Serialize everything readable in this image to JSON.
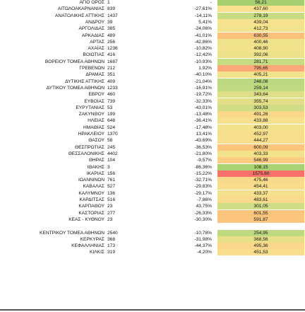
{
  "rows": [
    {
      "name": "ΑΓΙΟ ΟΡΟΣ",
      "value": "1",
      "change": "-",
      "index": "56,21",
      "color": "#a6d070"
    },
    {
      "name": "ΑΙΤΩΛΟΑΚΑΡΝΑΝΙΑΣ",
      "value": "839",
      "change": "-27,61%",
      "index": "437,60",
      "color": "#f7e08e"
    },
    {
      "name": "ΑΝΑΤΟΛΙΚΗΣ ΑΤΤΙΚΗΣ",
      "value": "1437",
      "change": "-14,11%",
      "index": "278,19",
      "color": "#c6dc82"
    },
    {
      "name": "ΑΝΔΡΟΥ",
      "value": "39",
      "change": "5,41%",
      "index": "439,04",
      "color": "#f7e08e"
    },
    {
      "name": "ΑΡΓΟΛΙΔΑΣ",
      "value": "385",
      "change": "-24,06%",
      "index": "412,73",
      "color": "#f3e28c"
    },
    {
      "name": "ΑΡΚΑΔΙΑΣ",
      "value": "489",
      "change": "-41,01%",
      "index": "630,55",
      "color": "#fbc07a"
    },
    {
      "name": "ΑΡΤΑΣ",
      "value": "256",
      "change": "-42,86%",
      "index": "400,46",
      "color": "#f0e28a"
    },
    {
      "name": "ΑΧΑΪΑΣ",
      "value": "1236",
      "change": "-10,82%",
      "index": "408,90",
      "color": "#f2e28b"
    },
    {
      "name": "ΒΟΙΩΤΙΑΣ",
      "value": "416",
      "change": "-12,42%",
      "index": "392,06",
      "color": "#ede18a"
    },
    {
      "name": "ΒΟΡΕΙΟΥ ΤΟΜΕΑ ΑΘΗΝΩΝ",
      "value": "1687",
      "change": "-10,93%",
      "index": "281,71",
      "color": "#c7dc82"
    },
    {
      "name": "ΓΡΕΒΕΝΩΝ",
      "value": "212",
      "change": "1,92%",
      "index": "795,65",
      "color": "#fca878"
    },
    {
      "name": "ΔΡΑΜΑΣ",
      "value": "351",
      "change": "-40,10%",
      "index": "405,21",
      "color": "#f1e28b"
    },
    {
      "name": "ΔΥΤΙΚΗΣ ΑΤΤΙΚΗΣ",
      "value": "409",
      "change": "-21,04%",
      "index": "248,08",
      "color": "#bad980"
    },
    {
      "name": "ΔΥΤΙΚΟΥ ΤΟΜΕΑ ΑΘΗΝΩΝ",
      "value": "1233",
      "change": "-16,91%",
      "index": "259,14",
      "color": "#bfda81"
    },
    {
      "name": "ΕΒΡΟΥ",
      "value": "460",
      "change": "-19,72%",
      "index": "343,64",
      "color": "#dfdf87"
    },
    {
      "name": "ΕΥΒΟΙΑΣ",
      "value": "739",
      "change": "-32,33%",
      "index": "355,74",
      "color": "#e3df88"
    },
    {
      "name": "ΕΥΡΥΤΑΝΙΑΣ",
      "value": "53",
      "change": "-43,01%",
      "index": "303,53",
      "color": "#d0dd84"
    },
    {
      "name": "ΖΑΚΥΝΘΟΥ",
      "value": "199",
      "change": "-13,48%",
      "index": "491,26",
      "color": "#fad88a"
    },
    {
      "name": "ΗΛΕΙΑΣ",
      "value": "648",
      "change": "-36,41%",
      "index": "433,88",
      "color": "#f6e08d"
    },
    {
      "name": "ΗΜΑΘΙΑΣ",
      "value": "524",
      "change": "-17,48%",
      "index": "403,00",
      "color": "#f1e28b"
    },
    {
      "name": "ΗΡΑΚΛΕΙΟΥ",
      "value": "1370",
      "change": "13,41%",
      "index": "452,97",
      "color": "#f8dd8c"
    },
    {
      "name": "ΘΑΣΟΥ",
      "value": "58",
      "change": "-43,69%",
      "index": "444,27",
      "color": "#f7df8d"
    },
    {
      "name": "ΘΕΣΠΡΩΤΙΑΣ",
      "value": "245",
      "change": "-36,53%",
      "index": "600,09",
      "color": "#fbc57c"
    },
    {
      "name": "ΘΕΣΣΑΛΟΝΙΚΗΣ",
      "value": "4402",
      "change": "-21,80%",
      "index": "403,33",
      "color": "#f1e28b"
    },
    {
      "name": "ΘΗΡΑΣ",
      "value": "104",
      "change": "-9,57%",
      "index": "546,99",
      "color": "#fbcd82"
    },
    {
      "name": "ΙΘΑΚΗΣ",
      "value": "3",
      "change": "-86,36%",
      "index": "108,15",
      "color": "#a9d372"
    },
    {
      "name": "ΙΚΑΡΙΑΣ",
      "value": "156",
      "change": "-15,22%",
      "index": "1575,60",
      "color": "#f8716b"
    },
    {
      "name": "ΙΩΑΝΝΙΝΩΝ",
      "value": "761",
      "change": "-32,71%",
      "index": "475,46",
      "color": "#f9da8b"
    },
    {
      "name": "ΚΑΒΑΛΑΣ",
      "value": "527",
      "change": "-29,83%",
      "index": "454,41",
      "color": "#f8dd8c"
    },
    {
      "name": "ΚΑΛΥΜΝΟΥ",
      "value": "136",
      "change": "-29,17%",
      "index": "433,37",
      "color": "#f6e08d"
    },
    {
      "name": "ΚΑΡΔΙΤΣΑΣ",
      "value": "516",
      "change": "-7,86%",
      "index": "483,61",
      "color": "#f9d98b"
    },
    {
      "name": "ΚΑΡΠΑΘΟΥ",
      "value": "23",
      "change": "43,75%",
      "index": "301,05",
      "color": "#cfdd84"
    },
    {
      "name": "ΚΑΣΤΟΡΙΑΣ",
      "value": "277",
      "change": "-26,33%",
      "index": "601,55",
      "color": "#fbc47c"
    },
    {
      "name": "ΚΕΑΣ - ΚΥΘΝΟΥ",
      "value": "23",
      "change": "-30,30%",
      "index": "591,87",
      "color": "#fbc67d"
    },
    {
      "name": "ΚΕΝΤΡΙΚΟΥ ΤΟΜΕΑ ΑΘΗΝΩΝ",
      "value": "2540",
      "change": "-10,78%",
      "index": "254,95",
      "color": "#bdda81"
    },
    {
      "name": "ΚΕΡΚΥΡΑΣ",
      "value": "368",
      "change": "-31,98%",
      "index": "368,56",
      "color": "#e7e089"
    },
    {
      "name": "ΚΕΦΑΛΛΗΝΙΑΣ",
      "value": "173",
      "change": "-44,37%",
      "index": "495,36",
      "color": "#fad78a"
    },
    {
      "name": "ΚΙΛΚΙΣ",
      "value": "319",
      "change": "-4,20%",
      "index": "451,53",
      "color": "#f8dd8c"
    }
  ]
}
